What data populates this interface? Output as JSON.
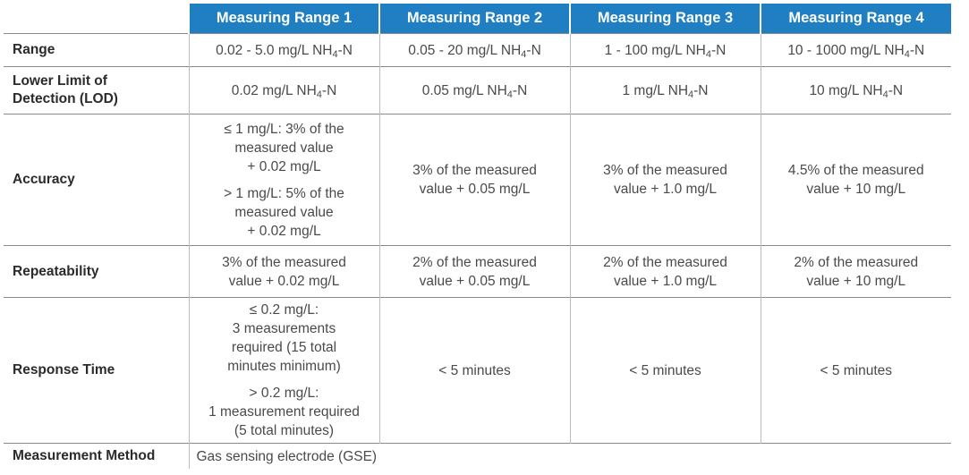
{
  "headers": [
    "Measuring Range 1",
    "Measuring Range 2",
    "Measuring Range 3",
    "Measuring Range 4"
  ],
  "unit": {
    "pre": "NH",
    "sub": "4",
    "post": "-N"
  },
  "rows": {
    "range": {
      "label": "Range",
      "values": [
        "0.02 - 5.0 mg/L",
        "0.05 - 20 mg/L",
        "1 - 100 mg/L",
        "10 - 1000 mg/L"
      ]
    },
    "lod": {
      "label_line1": "Lower Limit of",
      "label_line2": "Detection (LOD)",
      "values": [
        "0.02 mg/L",
        "0.05 mg/L",
        "1 mg/L",
        "10 mg/L"
      ]
    },
    "accuracy": {
      "label": "Accuracy",
      "r1_part1": [
        "≤ 1 mg/L: 3% of the",
        "measured value",
        "+ 0.02 mg/L"
      ],
      "r1_part2": [
        "> 1 mg/L: 5% of the",
        "measured value",
        "+ 0.02 mg/L"
      ],
      "others": [
        [
          "3% of the measured",
          "value + 0.05 mg/L"
        ],
        [
          "3% of the measured",
          "value + 1.0 mg/L"
        ],
        [
          "4.5% of the measured",
          "value + 10 mg/L"
        ]
      ]
    },
    "repeatability": {
      "label": "Repeatability",
      "values": [
        [
          "3% of the measured",
          "value + 0.02 mg/L"
        ],
        [
          "2% of the measured",
          "value + 0.05 mg/L"
        ],
        [
          "2% of the measured",
          "value + 1.0 mg/L"
        ],
        [
          "2% of the measured",
          "value + 10 mg/L"
        ]
      ]
    },
    "response_time": {
      "label": "Response Time",
      "r1_part1": [
        "≤ 0.2 mg/L:",
        "3 measurements",
        "required (15 total",
        "minutes minimum)"
      ],
      "r1_part2": [
        "> 0.2 mg/L:",
        "1 measurement required",
        "(5 total minutes)"
      ],
      "others": [
        "< 5 minutes",
        "< 5 minutes",
        "< 5 minutes"
      ]
    },
    "method": {
      "label": "Measurement Method",
      "value": "Gas sensing electrode (GSE)"
    }
  }
}
